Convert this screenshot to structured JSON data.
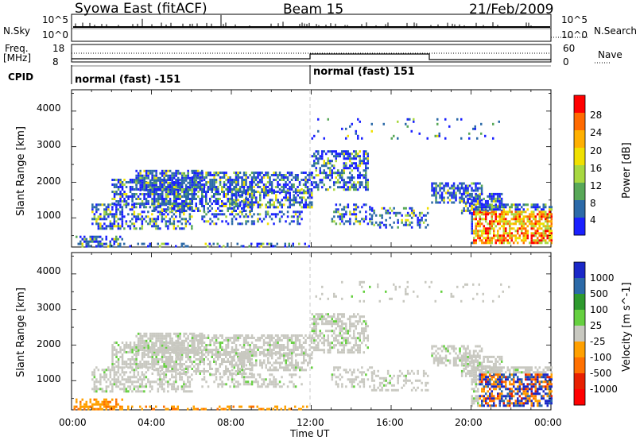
{
  "header": {
    "station": "Syowa East (fitACF)",
    "beam": "Beam 15",
    "date": "21/Feb/2009"
  },
  "strips": {
    "nsky_label": "N.Sky",
    "nsky_ticks": [
      "10^5",
      "10^0"
    ],
    "nsearch_ticks": [
      "10^5",
      "10^0"
    ],
    "nsearch_label": "N.Search",
    "freq_label_1": "Freq.",
    "freq_label_2": "[MHz]",
    "freq_ticks": [
      "18",
      "8"
    ],
    "nave_ticks": [
      "60",
      "0"
    ],
    "nave_label": "Nave",
    "cpid_label": "CPID",
    "cpid_segments": [
      "normal (fast) -151",
      "normal (fast) 151"
    ]
  },
  "chart_data": [
    {
      "type": "heatmap",
      "name": "power",
      "ylabel": "Slant Range [km]",
      "ylim": [
        180,
        4600
      ],
      "y_ticks": [
        "4000",
        "3000",
        "2000",
        "1000"
      ],
      "xlim": [
        "00:00",
        "24:00"
      ],
      "colorbar": {
        "label": "Power [dB]",
        "ticks": [
          "28",
          "24",
          "20",
          "16",
          "12",
          "8",
          "4"
        ],
        "colors": [
          "#ff0000",
          "#ff6a00",
          "#ffb000",
          "#f0e000",
          "#a8d840",
          "#58a858",
          "#2c6aa8",
          "#1a20ff"
        ]
      }
    },
    {
      "type": "heatmap",
      "name": "velocity",
      "ylabel": "Slant Range [km]",
      "ylim": [
        180,
        4600
      ],
      "y_ticks": [
        "4000",
        "3000",
        "2000",
        "1000"
      ],
      "xlim": [
        "00:00",
        "24:00"
      ],
      "colorbar": {
        "label": "Velocity [m s^-1]",
        "ticks": [
          "1000",
          "500",
          "100",
          "25",
          "-25",
          "-100",
          "-500",
          "-1000"
        ],
        "colors": [
          "#1a28c8",
          "#2c6aa8",
          "#2e9a2e",
          "#66d040",
          "#c8c8c0",
          "#ffa000",
          "#ff7000",
          "#e82000",
          "#ff0000"
        ]
      }
    }
  ],
  "xaxis": {
    "ticks": [
      "00:00",
      "04:00",
      "08:00",
      "12:00",
      "16:00",
      "20:00",
      "00:00"
    ],
    "label": "Time UT"
  }
}
